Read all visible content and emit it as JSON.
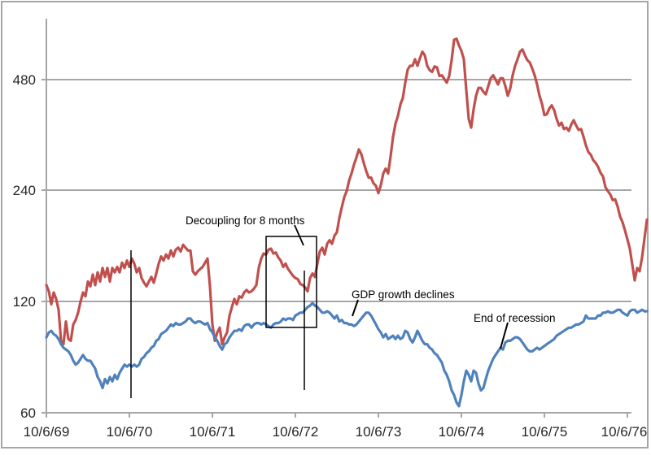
{
  "chart_data": {
    "type": "line",
    "title": "",
    "grid": "horizontal-only",
    "grid_color": "#A6A6A6",
    "axis_color": "#A6A6A6",
    "text_color": "#262626",
    "x_axis": {
      "tick_labels": [
        "10/6/69",
        "10/6/70",
        "10/6/71",
        "10/6/72",
        "10/6/73",
        "10/6/74",
        "10/6/75",
        "10/6/76"
      ],
      "years_per_tick": 1
    },
    "y_axis": {
      "scale": "log2",
      "tick_values": [
        60,
        120,
        240,
        480
      ],
      "tick_labels": [
        "60",
        "120",
        "240",
        "480"
      ],
      "min": 60
    },
    "series": [
      {
        "name": "red-index",
        "color": "#C0504D",
        "points_per_year": 34,
        "values": [
          133,
          128,
          118,
          127,
          122,
          114,
          94,
          92,
          106,
          95,
          94,
          104,
          107,
          112,
          120,
          127,
          124,
          136,
          132,
          142,
          133,
          144,
          136,
          148,
          140,
          148,
          136,
          148,
          144,
          149,
          144,
          153,
          148,
          155,
          149,
          157,
          152,
          144,
          148,
          139,
          135,
          132,
          136,
          140,
          135,
          143,
          152,
          159,
          155,
          161,
          157,
          165,
          159,
          166,
          168,
          164,
          171,
          168,
          165,
          165,
          145,
          142,
          145,
          147,
          149,
          153,
          157,
          132,
          104,
          94,
          99,
          102,
          92,
          96,
          99,
          110,
          116,
          122,
          118,
          124,
          123,
          127,
          129,
          127,
          128,
          130,
          133,
          148,
          157,
          162,
          161,
          166,
          167,
          162,
          163,
          158,
          155,
          149,
          152,
          147,
          144,
          141,
          139,
          138,
          134,
          133,
          131,
          128,
          139,
          143,
          140,
          152,
          164,
          168,
          161,
          172,
          176,
          172,
          181,
          185,
          202,
          216,
          230,
          239,
          255,
          267,
          282,
          295,
          310,
          301,
          285,
          271,
          260,
          260,
          251,
          247,
          236,
          248,
          267,
          275,
          267,
          297,
          335,
          364,
          382,
          410,
          427,
          470,
          510,
          522,
          522,
          544,
          522,
          547,
          570,
          558,
          522,
          508,
          503,
          520,
          517,
          490,
          492,
          481,
          470,
          490,
          541,
          614,
          618,
          593,
          573,
          544,
          449,
          375,
          355,
          398,
          433,
          455,
          455,
          444,
          437,
          460,
          483,
          492,
          479,
          465,
          483,
          483,
          460,
          433,
          453,
          492,
          522,
          544,
          570,
          578,
          558,
          541,
          533,
          514,
          492,
          465,
          433,
          412,
          384,
          386,
          400,
          408,
          396,
          375,
          360,
          366,
          352,
          355,
          348,
          362,
          372,
          360,
          350,
          352,
          336,
          318,
          305,
          300,
          290,
          285,
          278,
          268,
          262,
          245,
          239,
          234,
          226,
          227,
          217,
          204,
          197,
          187,
          177,
          167,
          151,
          137,
          148,
          145,
          158,
          178,
          200
        ]
      },
      {
        "name": "blue-index",
        "color": "#4F81BD",
        "points_per_year": 34,
        "values": [
          96,
          99,
          100,
          98,
          97,
          95,
          92,
          90,
          89,
          88,
          86,
          83,
          81,
          82,
          84,
          86,
          84,
          83,
          83,
          81,
          79,
          75,
          73,
          70,
          74,
          72,
          75,
          73,
          76,
          74,
          77,
          79,
          81,
          80,
          81,
          80,
          81,
          80,
          81,
          84,
          85,
          87,
          88,
          90,
          91,
          94,
          95,
          98,
          99,
          100,
          102,
          104,
          103,
          105,
          104,
          104,
          105,
          106,
          108,
          108,
          106,
          105,
          106,
          106,
          105,
          104,
          105,
          101,
          99,
          96,
          94,
          91,
          89,
          92,
          93,
          96,
          98,
          100,
          100,
          101,
          100,
          103,
          104,
          104,
          102,
          104,
          105,
          105,
          104,
          105,
          104,
          103,
          102,
          104,
          105,
          105,
          106,
          108,
          107,
          108,
          108,
          107,
          110,
          111,
          112,
          112,
          114,
          116,
          117,
          119,
          117,
          116,
          114,
          112,
          112,
          113,
          112,
          110,
          108,
          110,
          106,
          107,
          105,
          105,
          104,
          104,
          103,
          104,
          106,
          108,
          110,
          112,
          112,
          110,
          107,
          104,
          101,
          99,
          96,
          98,
          95,
          96,
          97,
          95,
          97,
          95,
          96,
          100,
          99,
          95,
          93,
          96,
          100,
          97,
          94,
          92,
          92,
          90,
          89,
          87,
          86,
          84,
          82,
          78,
          76,
          73,
          69,
          67,
          64,
          62.5,
          67,
          73,
          78,
          76,
          73,
          78,
          77,
          72,
          69,
          70,
          74,
          78,
          81,
          84,
          86,
          88,
          90,
          89,
          93,
          94,
          94,
          95,
          96,
          96,
          95,
          93,
          91,
          89,
          88,
          88,
          89,
          90,
          89,
          90,
          91,
          92,
          93,
          94,
          95,
          97,
          98,
          99,
          100,
          101,
          102,
          102,
          103,
          104,
          104,
          105,
          106,
          110,
          108,
          108,
          108,
          108,
          110,
          110,
          112,
          112,
          113,
          112,
          112,
          113,
          114,
          114,
          112,
          111,
          110,
          113,
          114,
          114,
          112,
          113,
          114,
          113,
          113
        ]
      }
    ],
    "annotations": {
      "decoupling": {
        "label": "Decoupling for 8 months"
      },
      "gdp": {
        "label": "GDP growth declines"
      },
      "recession": {
        "label": "End of recession"
      }
    }
  }
}
